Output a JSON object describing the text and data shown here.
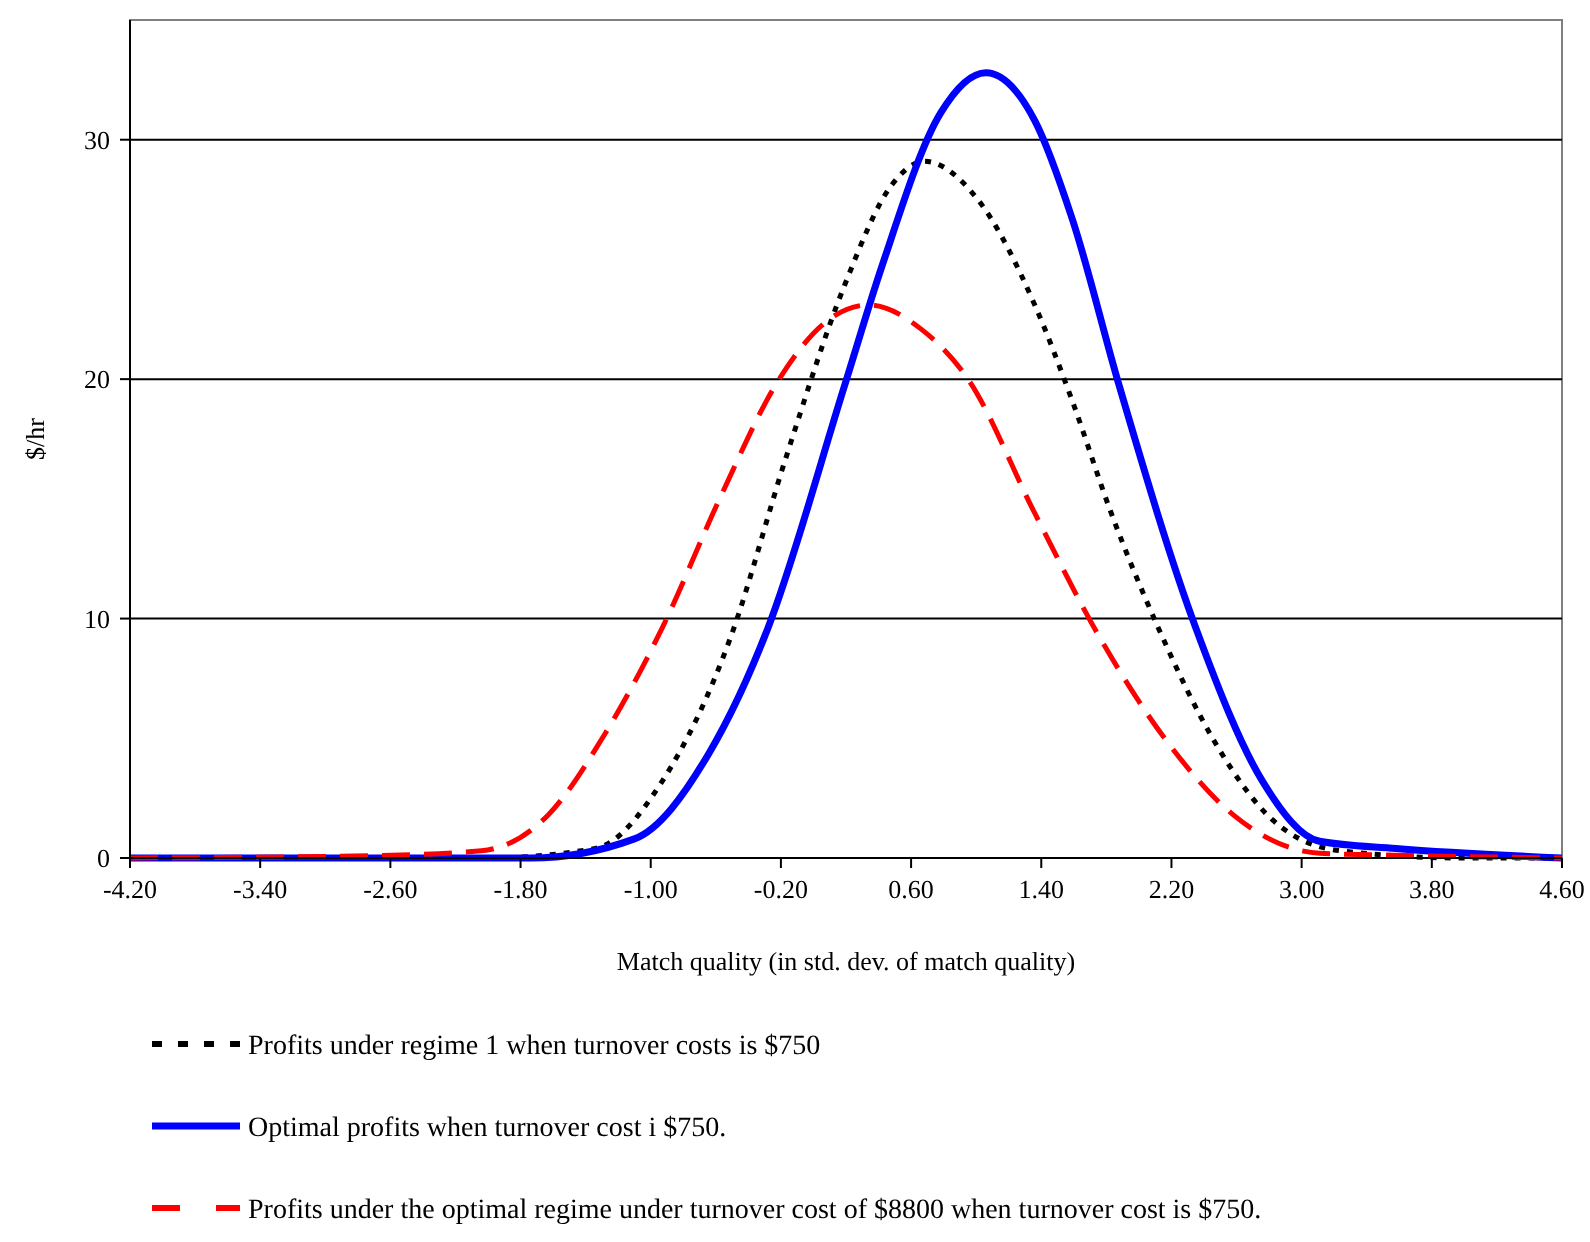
{
  "chart_data": {
    "type": "line",
    "xlabel": "Match quality (in std. dev. of match quality)",
    "ylabel": "$/hr",
    "xlim": [
      -4.2,
      4.6
    ],
    "ylim": [
      0,
      35
    ],
    "xticks": [
      {
        "value": -4.2,
        "label": "-4.20"
      },
      {
        "value": -3.4,
        "label": "-3.40"
      },
      {
        "value": -2.6,
        "label": "-2.60"
      },
      {
        "value": -1.8,
        "label": "-1.80"
      },
      {
        "value": -1.0,
        "label": "-1.00"
      },
      {
        "value": -0.2,
        "label": "-0.20"
      },
      {
        "value": 0.6,
        "label": "0.60"
      },
      {
        "value": 1.4,
        "label": "1.40"
      },
      {
        "value": 2.2,
        "label": "2.20"
      },
      {
        "value": 3.0,
        "label": "3.00"
      },
      {
        "value": 3.8,
        "label": "3.80"
      },
      {
        "value": 4.6,
        "label": "4.60"
      }
    ],
    "yticks": [
      0,
      10,
      20,
      30
    ],
    "grid": "y",
    "legend": "bottom",
    "marker": "none",
    "series": [
      {
        "name": "Profits under regime 1 when turnover costs is $750",
        "color": "#000000",
        "line_style": "dotted",
        "x": [
          -4.2,
          -2.0,
          -1.34,
          -0.93,
          -0.51,
          -0.17,
          0.19,
          0.48,
          0.68,
          1.01,
          1.36,
          1.59,
          1.83,
          2.12,
          2.47,
          2.82,
          3.24,
          4.0,
          4.6
        ],
        "values": [
          0,
          0,
          0.4,
          3.2,
          9.2,
          16.7,
          23.9,
          28.1,
          29.1,
          27.5,
          23.1,
          19.1,
          14.4,
          9.6,
          4.8,
          1.6,
          0.3,
          0,
          0
        ]
      },
      {
        "name": "Optimal profits when turnover cost i $750.",
        "color": "#0000ff",
        "line_style": "solid",
        "x": [
          -4.2,
          -1.74,
          -1.1,
          -0.64,
          -0.28,
          0.19,
          0.42,
          0.78,
          1.06,
          1.36,
          1.59,
          1.88,
          2.35,
          2.76,
          3.11,
          3.58,
          4.6
        ],
        "values": [
          0,
          0,
          0.8,
          4.4,
          9.6,
          19.7,
          24.7,
          31.1,
          32.8,
          30.8,
          26.7,
          19.7,
          9.6,
          3.2,
          0.7,
          0.4,
          0
        ]
      },
      {
        "name": "Profits under the optimal regime under turnover cost of $8800 when turnover cost is $750.",
        "color": "#ff0000",
        "line_style": "dashed",
        "x": [
          -4.2,
          -2.68,
          -2.04,
          -1.63,
          -1.28,
          -0.93,
          -0.57,
          -0.22,
          0.06,
          0.34,
          0.66,
          0.95,
          1.36,
          1.76,
          2.18,
          2.58,
          3.11,
          3.69,
          4.6
        ],
        "values": [
          0,
          0.1,
          0.3,
          1.8,
          5.2,
          9.6,
          15.1,
          19.9,
          22.3,
          23.1,
          22.1,
          20,
          14.4,
          9.2,
          4.8,
          1.8,
          0.2,
          0.1,
          0
        ]
      }
    ]
  }
}
